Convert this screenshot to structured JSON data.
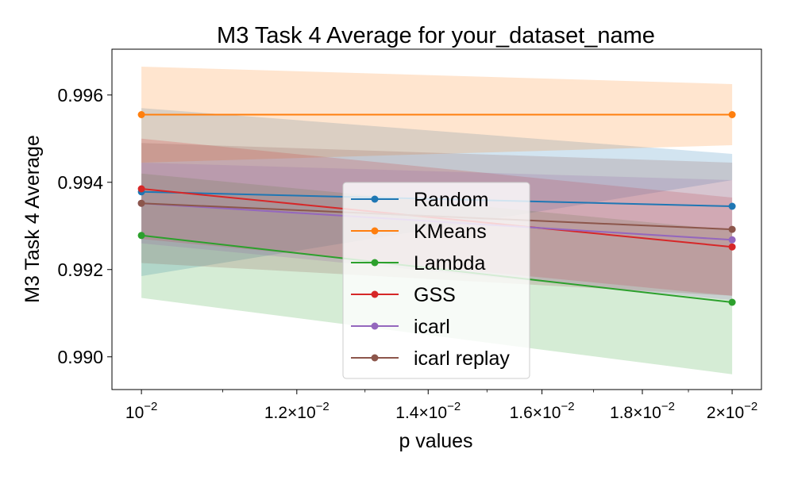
{
  "chart_data": {
    "type": "line",
    "title": "M3 Task 4 Average for your_dataset_name",
    "xlabel": "p values",
    "ylabel": "M3 Task 4 Average",
    "xscale": "log",
    "xlim": [
      0.00966,
      0.0207
    ],
    "ylim": [
      0.98925,
      0.99705
    ],
    "grid": false,
    "legend_position": "center",
    "x": [
      0.01,
      0.02
    ],
    "xticks": [
      {
        "value": 0.01,
        "base": "10",
        "exp": "−2"
      },
      {
        "value": 0.012,
        "base": "1.2×10",
        "exp": "−2"
      },
      {
        "value": 0.014,
        "base": "1.4×10",
        "exp": "−2"
      },
      {
        "value": 0.016,
        "base": "1.6×10",
        "exp": "−2"
      },
      {
        "value": 0.018,
        "base": "1.8×10",
        "exp": "−2"
      },
      {
        "value": 0.02,
        "base": "2×10",
        "exp": "−2"
      }
    ],
    "minor_xticks": [
      0.011,
      0.013,
      0.015,
      0.017,
      0.019
    ],
    "yticks": [
      {
        "value": 0.99,
        "label": "0.990"
      },
      {
        "value": 0.992,
        "label": "0.992"
      },
      {
        "value": 0.994,
        "label": "0.994"
      },
      {
        "value": 0.996,
        "label": "0.996"
      }
    ],
    "series": [
      {
        "name": "Random",
        "color": "#1f77b4",
        "values": [
          0.99378,
          0.99345
        ],
        "lower": [
          0.99185,
          0.99405
        ],
        "upper": [
          0.9957,
          0.99465
        ]
      },
      {
        "name": "KMeans",
        "color": "#ff7f0e",
        "values": [
          0.99555,
          0.99555
        ],
        "lower": [
          0.99445,
          0.99485
        ],
        "upper": [
          0.99665,
          0.99625
        ]
      },
      {
        "name": "Lambda",
        "color": "#2ca02c",
        "values": [
          0.99278,
          0.99125
        ],
        "lower": [
          0.99135,
          0.9896
        ],
        "upper": [
          0.9942,
          0.9929
        ]
      },
      {
        "name": "GSS",
        "color": "#d62728",
        "values": [
          0.99385,
          0.99252
        ],
        "lower": [
          0.9927,
          0.9914
        ],
        "upper": [
          0.995,
          0.99365
        ]
      },
      {
        "name": "icarl",
        "color": "#9467bd",
        "values": [
          0.99352,
          0.99268
        ],
        "lower": [
          0.9926,
          0.9913
        ],
        "upper": [
          0.99445,
          0.99405
        ]
      },
      {
        "name": "icarl replay",
        "color": "#8c564b",
        "values": [
          0.99352,
          0.99292
        ],
        "lower": [
          0.99215,
          0.9914
        ],
        "upper": [
          0.9949,
          0.99445
        ]
      }
    ]
  }
}
